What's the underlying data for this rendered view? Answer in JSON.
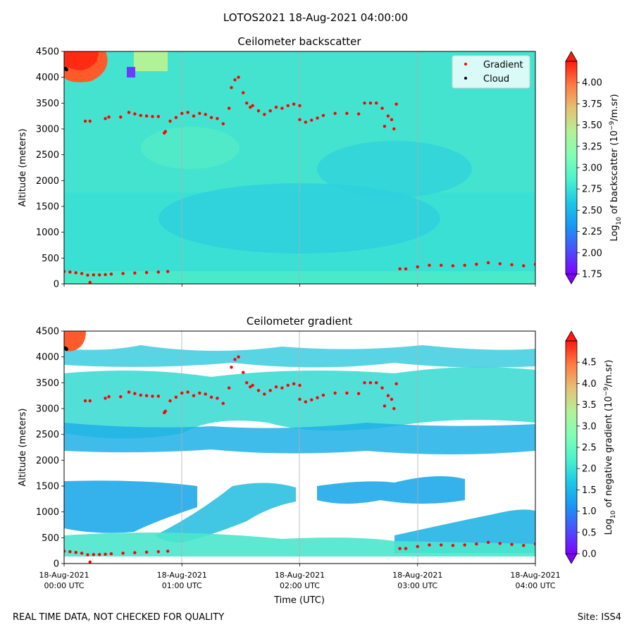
{
  "figure": {
    "suptitle": "LOTOS2021 18-Aug-2021 04:00:00",
    "footer_left": "REAL TIME DATA, NOT CHECKED FOR QUALITY",
    "footer_right": "Site: ISS4"
  },
  "colors": {
    "rainbow": [
      "#8000ff",
      "#4b4ffc",
      "#1996f3",
      "#1ac7e8",
      "#4cf2ce",
      "#80ffb4",
      "#b2f296",
      "#e6c174",
      "#ff7c44",
      "#ff1a0d"
    ],
    "gradient_marker": "#ff0000",
    "cloud_marker": "#000000",
    "gridline": "#b0b0b0",
    "background_field_mid": "#2fd3dc",
    "background_field_low": "#48eac8"
  },
  "chart_data": [
    {
      "type": "heatmap",
      "title": "Ceilometer backscatter",
      "xlabel": "",
      "ylabel": "Altitude (meters)",
      "xlim_hours": [
        0,
        4
      ],
      "ylim": [
        0,
        4500
      ],
      "x_ticks": [
        0,
        1,
        2,
        3,
        4
      ],
      "x_tick_labels": [],
      "y_ticks": [
        0,
        500,
        1000,
        1500,
        2000,
        2500,
        3000,
        3500,
        4000,
        4500
      ],
      "y_tick_labels": [
        "0",
        "500",
        "1000",
        "1500",
        "2000",
        "2500",
        "3000",
        "3500",
        "4000",
        "4500"
      ],
      "grid": "vertical",
      "colorbar": {
        "label": "Log10 of backscatter (10^-9/m.sr)",
        "label_text": "Log",
        "label_sub": "10",
        "label_rest": " of backscatter (10",
        "label_sup": "−9",
        "label_end": "/m.sr)",
        "range": [
          1.75,
          4.25
        ],
        "ticks": [
          1.75,
          2.0,
          2.25,
          2.5,
          2.75,
          3.0,
          3.25,
          3.5,
          3.75,
          4.0
        ],
        "tick_labels": [
          "1.75",
          "2.00",
          "2.25",
          "2.50",
          "2.75",
          "3.00",
          "3.25",
          "3.50",
          "3.75",
          "4.00"
        ]
      },
      "legend": {
        "location": "top-right",
        "entries": [
          "Gradient",
          "Cloud"
        ]
      },
      "series": [
        {
          "name": "Gradient",
          "x_hours": [
            0.0,
            0.05,
            0.1,
            0.15,
            0.2,
            0.22,
            0.25,
            0.3,
            0.35,
            0.4,
            0.5,
            0.6,
            0.7,
            0.8,
            0.88,
            0.18,
            0.22,
            0.35,
            0.38,
            0.48,
            0.55,
            0.6,
            0.65,
            0.7,
            0.75,
            0.8,
            0.85,
            0.86,
            0.9,
            0.95,
            1.0,
            1.05,
            1.1,
            1.15,
            1.2,
            1.25,
            1.3,
            1.35,
            1.4,
            1.42,
            1.45,
            1.48,
            1.52,
            1.55,
            1.58,
            1.6,
            1.65,
            1.7,
            1.75,
            1.8,
            1.85,
            1.9,
            1.95,
            2.0,
            2.0,
            2.05,
            2.1,
            2.15,
            2.2,
            2.3,
            2.4,
            2.5,
            2.55,
            2.6,
            2.65,
            2.7,
            2.72,
            2.75,
            2.78,
            2.8,
            2.82,
            2.85,
            2.9,
            3.0,
            3.1,
            3.2,
            3.3,
            3.4,
            3.5,
            3.6,
            3.7,
            3.8,
            3.9,
            4.0
          ],
          "y_m": [
            240,
            230,
            215,
            200,
            170,
            30,
            175,
            175,
            180,
            190,
            200,
            210,
            220,
            230,
            240,
            3150,
            3150,
            3200,
            3230,
            3230,
            3320,
            3290,
            3260,
            3250,
            3240,
            3240,
            2920,
            2950,
            3150,
            3220,
            3300,
            3320,
            3250,
            3300,
            3280,
            3220,
            3200,
            3100,
            3400,
            3800,
            3950,
            4000,
            3700,
            3500,
            3420,
            3450,
            3350,
            3280,
            3350,
            3420,
            3400,
            3450,
            3480,
            3450,
            3180,
            3130,
            3170,
            3210,
            3260,
            3300,
            3300,
            3290,
            3500,
            3500,
            3500,
            3400,
            3050,
            3250,
            3180,
            3000,
            3480,
            290,
            290,
            330,
            360,
            360,
            350,
            360,
            380,
            410,
            390,
            370,
            350,
            380
          ]
        },
        {
          "name": "Cloud",
          "x_hours": [
            0.01,
            0.02
          ],
          "y_m": [
            4170,
            4150
          ]
        }
      ]
    },
    {
      "type": "heatmap",
      "title": "Ceilometer gradient",
      "xlabel": "Time (UTC)",
      "ylabel": "Altitude (meters)",
      "xlim_hours": [
        0,
        4
      ],
      "ylim": [
        0,
        4500
      ],
      "x_ticks": [
        0,
        1,
        2,
        3,
        4
      ],
      "x_tick_dates": [
        "18-Aug-2021",
        "18-Aug-2021",
        "18-Aug-2021",
        "18-Aug-2021",
        "18-Aug-2021"
      ],
      "x_tick_times": [
        "00:00 UTC",
        "01:00 UTC",
        "02:00 UTC",
        "03:00 UTC",
        "04:00 UTC"
      ],
      "y_ticks": [
        0,
        500,
        1000,
        1500,
        2000,
        2500,
        3000,
        3500,
        4000,
        4500
      ],
      "y_tick_labels": [
        "0",
        "500",
        "1000",
        "1500",
        "2000",
        "2500",
        "3000",
        "3500",
        "4000",
        "4500"
      ],
      "grid": "vertical",
      "colorbar": {
        "label": "Log10 of negative gradient (10^-9/m.sr)",
        "label_text": "Log",
        "label_sub": "10",
        "label_rest": " of negative gradient (10",
        "label_sup": "−9",
        "label_end": "/m.sr)",
        "range": [
          0.0,
          5.0
        ],
        "ticks": [
          0.0,
          0.5,
          1.0,
          1.5,
          2.0,
          2.5,
          3.0,
          3.5,
          4.0,
          4.5
        ],
        "tick_labels": [
          "0.0",
          "0.5",
          "1.0",
          "1.5",
          "2.0",
          "2.5",
          "3.0",
          "3.5",
          "4.0",
          "4.5"
        ]
      },
      "series": [
        {
          "name": "Gradient",
          "same_as_panel": 0
        },
        {
          "name": "Cloud",
          "same_as_panel": 0
        }
      ]
    }
  ]
}
